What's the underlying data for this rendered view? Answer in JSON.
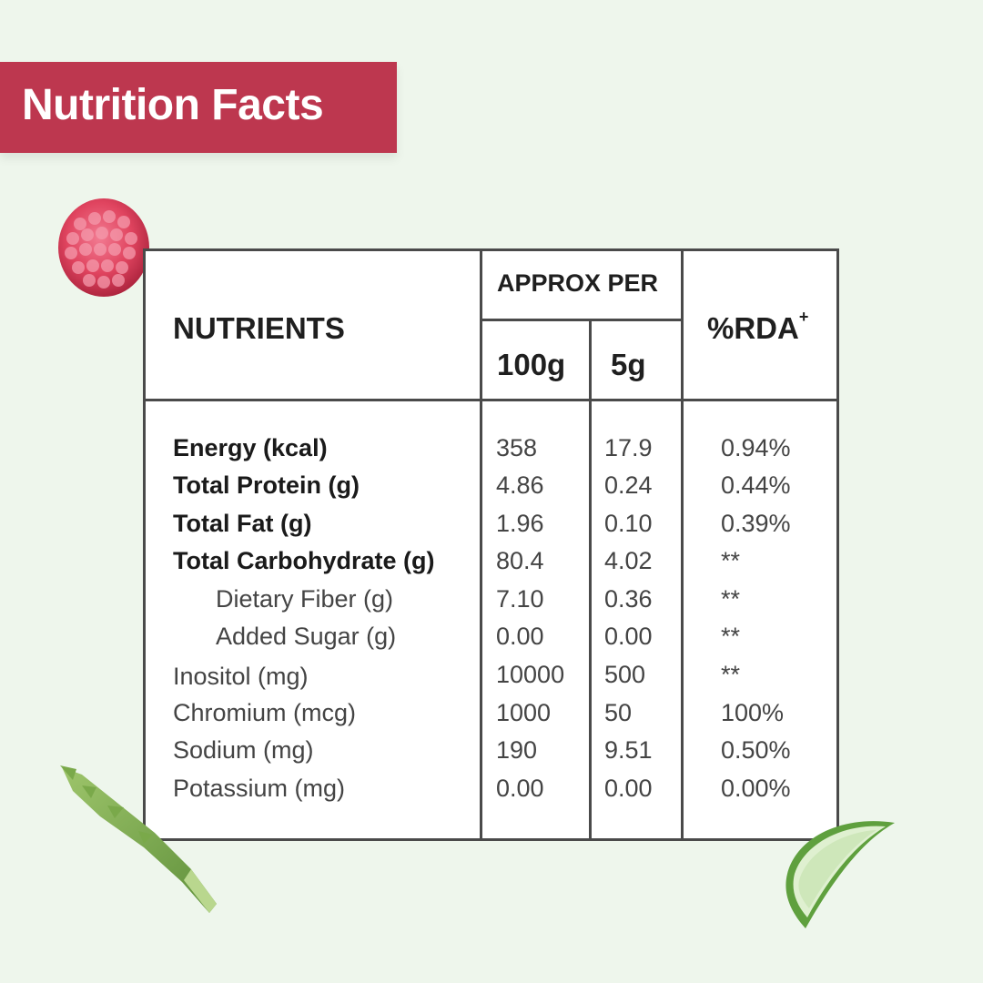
{
  "header": {
    "title": "Nutrition Facts"
  },
  "table": {
    "col_nutrients": "NUTRIENTS",
    "col_approx": "APPROX PER",
    "col_100g": "100g",
    "col_5g": "5g",
    "col_rda": "%RDA",
    "col_rda_sup": "+",
    "rows": [
      {
        "name": "Energy (kcal)",
        "v100": "358",
        "v5": "17.9",
        "rda": "0.94%"
      },
      {
        "name": "Total Protein (g)",
        "v100": "4.86",
        "v5": "0.24",
        "rda": "0.44%"
      },
      {
        "name": "Total Fat (g)",
        "v100": "1.96",
        "v5": "0.10",
        "rda": "0.39%"
      },
      {
        "name": "Total Carbohydrate (g)",
        "v100": "80.4",
        "v5": "4.02",
        "rda": "**"
      },
      {
        "name": "Dietary Fiber (g)",
        "v100": "7.10",
        "v5": "0.36",
        "rda": "**"
      },
      {
        "name": "Added Sugar (g)",
        "v100": "0.00",
        "v5": "0.00",
        "rda": "**"
      },
      {
        "name": "Inositol (mg)",
        "v100": "10000",
        "v5": "500",
        "rda": "**"
      },
      {
        "name": "Chromium (mcg)",
        "v100": "1000",
        "v5": "50",
        "rda": "100%"
      },
      {
        "name": "Sodium (mg)",
        "v100": "190",
        "v5": "9.51",
        "rda": "0.50%"
      },
      {
        "name": "Potassium (mg)",
        "v100": "0.00",
        "v5": "0.00",
        "rda": "0.00%"
      }
    ]
  },
  "decorations": {
    "raspberry": "raspberry-icon",
    "asparagus": "asparagus-icon",
    "aloe": "aloe-vera-icon"
  },
  "colors": {
    "banner": "#bd374f",
    "background": "#eef6ec",
    "border": "#4a4a4a"
  }
}
